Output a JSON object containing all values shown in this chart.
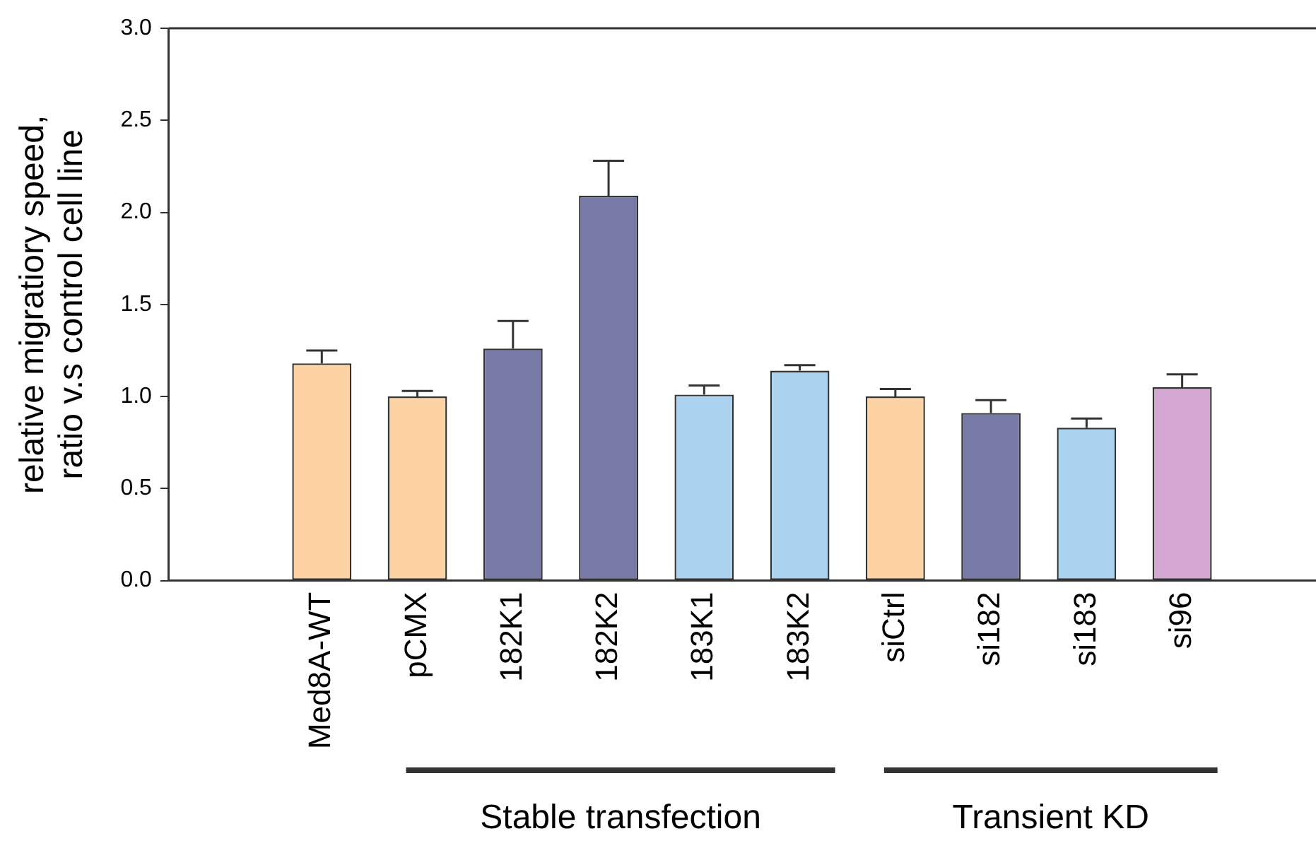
{
  "chart_data": {
    "type": "bar",
    "ylabel": "relative migratiory speed,\nratio v.s control cell line",
    "categories": [
      "Med8A-WT",
      "pCMX",
      "182K1",
      "182K2",
      "183K1",
      "183K2",
      "siCtrl",
      "si182",
      "si183",
      "si96"
    ],
    "values": [
      1.18,
      1.0,
      1.26,
      2.09,
      1.01,
      1.14,
      1.0,
      0.91,
      0.83,
      1.05
    ],
    "errors": [
      [
        1.18,
        1.25
      ],
      [
        1.0,
        1.03
      ],
      [
        1.26,
        1.41
      ],
      [
        2.09,
        2.28
      ],
      [
        1.01,
        1.06
      ],
      [
        1.14,
        1.17
      ],
      [
        1.0,
        1.04
      ],
      [
        0.91,
        0.98
      ],
      [
        0.83,
        0.88
      ],
      [
        1.05,
        1.12
      ]
    ],
    "colors": [
      "#fdd3a3",
      "#fdd3a3",
      "#7779a6",
      "#7779a6",
      "#abd3ef",
      "#abd3ef",
      "#fdd3a3",
      "#7779a6",
      "#abd3ef",
      "#d4a8d2"
    ],
    "ylim": [
      0,
      3
    ],
    "yticks": [
      {
        "value": 0,
        "label": "0.0"
      },
      0.5,
      {
        "value": 1,
        "label": "1.0"
      },
      1.5,
      {
        "value": 2,
        "label": "2.0"
      },
      2.5,
      {
        "value": 3,
        "label": "3.0"
      }
    ],
    "annotations": [
      "Stable transfection",
      "Transient KD"
    ],
    "grid": false,
    "legend": false
  }
}
